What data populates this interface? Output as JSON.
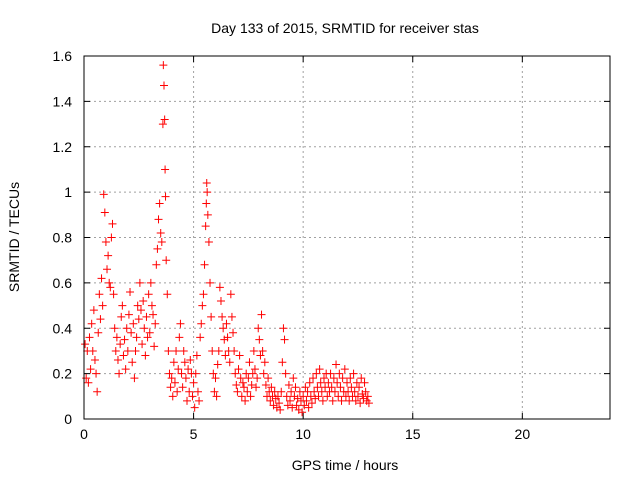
{
  "chart_data": {
    "type": "scatter",
    "title": "Day 133 of 2015, SRMTID for receiver stas",
    "xlabel": "GPS time / hours",
    "ylabel": "SRMTID / TECUs",
    "xlim": [
      0,
      24
    ],
    "ylim": [
      0,
      1.6
    ],
    "xticks": [
      0,
      5,
      10,
      15,
      20
    ],
    "yticks": [
      0,
      0.2,
      0.4,
      0.6,
      0.8,
      1,
      1.2,
      1.4,
      1.6
    ],
    "xtick_labels": [
      "0",
      "5",
      "10",
      "15",
      "20"
    ],
    "ytick_labels": [
      "0",
      "0.2",
      "0.4",
      "0.6",
      "0.8",
      "1",
      "1.2",
      "1.4",
      "1.6"
    ],
    "grid": true,
    "marker": "+",
    "color": "#ff0000",
    "series": [
      {
        "name": "SRMTID",
        "points": [
          [
            0.05,
            0.33
          ],
          [
            0.1,
            0.18
          ],
          [
            0.15,
            0.3
          ],
          [
            0.2,
            0.16
          ],
          [
            0.25,
            0.36
          ],
          [
            0.3,
            0.22
          ],
          [
            0.35,
            0.42
          ],
          [
            0.4,
            0.3
          ],
          [
            0.45,
            0.48
          ],
          [
            0.5,
            0.26
          ],
          [
            0.55,
            0.2
          ],
          [
            0.6,
            0.12
          ],
          [
            0.65,
            0.38
          ],
          [
            0.7,
            0.55
          ],
          [
            0.75,
            0.44
          ],
          [
            0.8,
            0.62
          ],
          [
            0.85,
            0.5
          ],
          [
            0.9,
            0.99
          ],
          [
            0.95,
            0.91
          ],
          [
            1.0,
            0.78
          ],
          [
            1.05,
            0.66
          ],
          [
            1.1,
            0.72
          ],
          [
            1.15,
            0.6
          ],
          [
            1.2,
            0.58
          ],
          [
            1.25,
            0.8
          ],
          [
            1.3,
            0.86
          ],
          [
            1.35,
            0.55
          ],
          [
            1.4,
            0.4
          ],
          [
            1.45,
            0.3
          ],
          [
            1.5,
            0.36
          ],
          [
            1.55,
            0.26
          ],
          [
            1.6,
            0.2
          ],
          [
            1.65,
            0.33
          ],
          [
            1.7,
            0.45
          ],
          [
            1.75,
            0.5
          ],
          [
            1.8,
            0.28
          ],
          [
            1.85,
            0.35
          ],
          [
            1.9,
            0.22
          ],
          [
            1.95,
            0.4
          ],
          [
            2.0,
            0.3
          ],
          [
            2.05,
            0.46
          ],
          [
            2.1,
            0.56
          ],
          [
            2.15,
            0.38
          ],
          [
            2.2,
            0.25
          ],
          [
            2.25,
            0.42
          ],
          [
            2.3,
            0.18
          ],
          [
            2.35,
            0.3
          ],
          [
            2.4,
            0.36
          ],
          [
            2.45,
            0.5
          ],
          [
            2.5,
            0.44
          ],
          [
            2.55,
            0.6
          ],
          [
            2.6,
            0.48
          ],
          [
            2.65,
            0.33
          ],
          [
            2.7,
            0.52
          ],
          [
            2.75,
            0.4
          ],
          [
            2.8,
            0.28
          ],
          [
            2.85,
            0.45
          ],
          [
            2.9,
            0.36
          ],
          [
            2.95,
            0.55
          ],
          [
            3.0,
            0.38
          ],
          [
            3.05,
            0.6
          ],
          [
            3.1,
            0.5
          ],
          [
            3.15,
            0.46
          ],
          [
            3.2,
            0.32
          ],
          [
            3.25,
            0.42
          ],
          [
            3.3,
            0.68
          ],
          [
            3.35,
            0.75
          ],
          [
            3.4,
            0.88
          ],
          [
            3.45,
            0.95
          ],
          [
            3.5,
            0.82
          ],
          [
            3.55,
            0.78
          ],
          [
            3.6,
            1.3
          ],
          [
            3.62,
            1.56
          ],
          [
            3.65,
            1.47
          ],
          [
            3.68,
            1.32
          ],
          [
            3.7,
            1.1
          ],
          [
            3.72,
            0.98
          ],
          [
            3.75,
            0.7
          ],
          [
            3.8,
            0.55
          ],
          [
            3.85,
            0.3
          ],
          [
            3.9,
            0.2
          ],
          [
            3.95,
            0.14
          ],
          [
            4.0,
            0.18
          ],
          [
            4.05,
            0.1
          ],
          [
            4.1,
            0.25
          ],
          [
            4.15,
            0.16
          ],
          [
            4.2,
            0.3
          ],
          [
            4.25,
            0.12
          ],
          [
            4.3,
            0.22
          ],
          [
            4.35,
            0.36
          ],
          [
            4.4,
            0.42
          ],
          [
            4.45,
            0.2
          ],
          [
            4.5,
            0.14
          ],
          [
            4.55,
            0.3
          ],
          [
            4.6,
            0.25
          ],
          [
            4.65,
            0.18
          ],
          [
            4.7,
            0.08
          ],
          [
            4.75,
            0.22
          ],
          [
            4.8,
            0.12
          ],
          [
            4.85,
            0.26
          ],
          [
            4.9,
            0.2
          ],
          [
            4.95,
            0.1
          ],
          [
            5.0,
            0.16
          ],
          [
            5.05,
            0.05
          ],
          [
            5.1,
            0.2
          ],
          [
            5.15,
            0.28
          ],
          [
            5.2,
            0.12
          ],
          [
            5.25,
            0.08
          ],
          [
            5.3,
            0.36
          ],
          [
            5.35,
            0.42
          ],
          [
            5.4,
            0.5
          ],
          [
            5.45,
            0.55
          ],
          [
            5.5,
            0.68
          ],
          [
            5.55,
            0.85
          ],
          [
            5.58,
            0.95
          ],
          [
            5.6,
            1.04
          ],
          [
            5.62,
            1.0
          ],
          [
            5.65,
            0.9
          ],
          [
            5.7,
            0.78
          ],
          [
            5.75,
            0.6
          ],
          [
            5.8,
            0.45
          ],
          [
            5.85,
            0.3
          ],
          [
            5.9,
            0.2
          ],
          [
            5.95,
            0.12
          ],
          [
            6.0,
            0.18
          ],
          [
            6.05,
            0.1
          ],
          [
            6.1,
            0.24
          ],
          [
            6.15,
            0.3
          ],
          [
            6.2,
            0.58
          ],
          [
            6.25,
            0.52
          ],
          [
            6.3,
            0.45
          ],
          [
            6.35,
            0.4
          ],
          [
            6.4,
            0.35
          ],
          [
            6.45,
            0.28
          ],
          [
            6.5,
            0.42
          ],
          [
            6.55,
            0.36
          ],
          [
            6.6,
            0.3
          ],
          [
            6.65,
            0.25
          ],
          [
            6.7,
            0.55
          ],
          [
            6.75,
            0.45
          ],
          [
            6.8,
            0.38
          ],
          [
            6.85,
            0.3
          ],
          [
            6.9,
            0.2
          ],
          [
            6.95,
            0.15
          ],
          [
            7.0,
            0.12
          ],
          [
            7.05,
            0.22
          ],
          [
            7.1,
            0.28
          ],
          [
            7.15,
            0.18
          ],
          [
            7.2,
            0.1
          ],
          [
            7.25,
            0.16
          ],
          [
            7.3,
            0.14
          ],
          [
            7.35,
            0.08
          ],
          [
            7.4,
            0.2
          ],
          [
            7.45,
            0.12
          ],
          [
            7.5,
            0.18
          ],
          [
            7.55,
            0.25
          ],
          [
            7.6,
            0.1
          ],
          [
            7.65,
            0.15
          ],
          [
            7.7,
            0.2
          ],
          [
            7.75,
            0.3
          ],
          [
            7.8,
            0.22
          ],
          [
            7.85,
            0.14
          ],
          [
            7.9,
            0.18
          ],
          [
            7.95,
            0.4
          ],
          [
            8.0,
            0.35
          ],
          [
            8.05,
            0.28
          ],
          [
            8.1,
            0.46
          ],
          [
            8.15,
            0.3
          ],
          [
            8.2,
            0.2
          ],
          [
            8.25,
            0.25
          ],
          [
            8.3,
            0.15
          ],
          [
            8.35,
            0.1
          ],
          [
            8.4,
            0.18
          ],
          [
            8.45,
            0.12
          ],
          [
            8.5,
            0.08
          ],
          [
            8.55,
            0.14
          ],
          [
            8.6,
            0.1
          ],
          [
            8.65,
            0.06
          ],
          [
            8.7,
            0.12
          ],
          [
            8.75,
            0.09
          ],
          [
            8.8,
            0.05
          ],
          [
            8.85,
            0.1
          ],
          [
            8.9,
            0.07
          ],
          [
            8.95,
            0.04
          ],
          [
            9.0,
            0.12
          ],
          [
            9.05,
            0.25
          ],
          [
            9.1,
            0.4
          ],
          [
            9.15,
            0.35
          ],
          [
            9.2,
            0.2
          ],
          [
            9.25,
            0.1
          ],
          [
            9.3,
            0.06
          ],
          [
            9.35,
            0.15
          ],
          [
            9.4,
            0.08
          ],
          [
            9.45,
            0.12
          ],
          [
            9.5,
            0.05
          ],
          [
            9.55,
            0.18
          ],
          [
            9.6,
            0.1
          ],
          [
            9.65,
            0.14
          ],
          [
            9.7,
            0.06
          ],
          [
            9.75,
            0.09
          ],
          [
            9.8,
            0.04
          ],
          [
            9.85,
            0.12
          ],
          [
            9.9,
            0.08
          ],
          [
            9.95,
            0.03
          ],
          [
            10.0,
            0.1
          ],
          [
            10.05,
            0.06
          ],
          [
            10.1,
            0.14
          ],
          [
            10.15,
            0.08
          ],
          [
            10.2,
            0.12
          ],
          [
            10.25,
            0.05
          ],
          [
            10.3,
            0.16
          ],
          [
            10.35,
            0.1
          ],
          [
            10.4,
            0.07
          ],
          [
            10.45,
            0.18
          ],
          [
            10.5,
            0.12
          ],
          [
            10.55,
            0.09
          ],
          [
            10.6,
            0.2
          ],
          [
            10.65,
            0.14
          ],
          [
            10.7,
            0.1
          ],
          [
            10.75,
            0.22
          ],
          [
            10.8,
            0.16
          ],
          [
            10.85,
            0.12
          ],
          [
            10.9,
            0.08
          ],
          [
            10.95,
            0.18
          ],
          [
            11.0,
            0.14
          ],
          [
            11.05,
            0.2
          ],
          [
            11.1,
            0.1
          ],
          [
            11.15,
            0.16
          ],
          [
            11.2,
            0.12
          ],
          [
            11.25,
            0.2
          ],
          [
            11.3,
            0.14
          ],
          [
            11.35,
            0.08
          ],
          [
            11.4,
            0.18
          ],
          [
            11.45,
            0.12
          ],
          [
            11.5,
            0.24
          ],
          [
            11.55,
            0.16
          ],
          [
            11.6,
            0.1
          ],
          [
            11.65,
            0.2
          ],
          [
            11.7,
            0.14
          ],
          [
            11.75,
            0.08
          ],
          [
            11.8,
            0.18
          ],
          [
            11.85,
            0.12
          ],
          [
            11.9,
            0.22
          ],
          [
            11.95,
            0.1
          ],
          [
            12.0,
            0.16
          ],
          [
            12.05,
            0.12
          ],
          [
            12.1,
            0.08
          ],
          [
            12.15,
            0.18
          ],
          [
            12.2,
            0.14
          ],
          [
            12.25,
            0.1
          ],
          [
            12.3,
            0.2
          ],
          [
            12.35,
            0.12
          ],
          [
            12.4,
            0.08
          ],
          [
            12.45,
            0.16
          ],
          [
            12.5,
            0.1
          ],
          [
            12.55,
            0.14
          ],
          [
            12.6,
            0.07
          ],
          [
            12.65,
            0.18
          ],
          [
            12.7,
            0.11
          ],
          [
            12.75,
            0.09
          ],
          [
            12.8,
            0.16
          ],
          [
            12.85,
            0.12
          ],
          [
            12.9,
            0.08
          ],
          [
            12.95,
            0.1
          ],
          [
            13.0,
            0.07
          ]
        ]
      }
    ]
  }
}
